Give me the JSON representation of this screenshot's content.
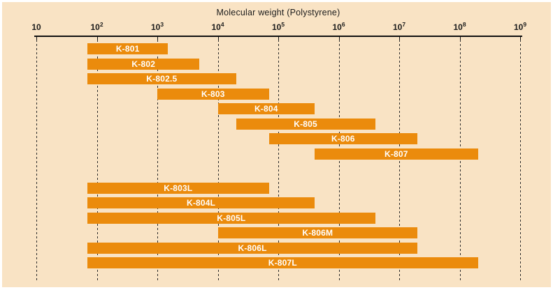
{
  "chart_data": {
    "type": "bar",
    "subtype": "horizontal-range-bars",
    "title": "Molecular weight (Polystyrene)",
    "x_axis": {
      "scale": "log10",
      "min": 10,
      "max": 1000000000,
      "ticks": [
        {
          "base": "10",
          "sup": "",
          "exp": 1
        },
        {
          "base": "10",
          "sup": "2",
          "exp": 2
        },
        {
          "base": "10",
          "sup": "3",
          "exp": 3
        },
        {
          "base": "10",
          "sup": "4",
          "exp": 4
        },
        {
          "base": "10",
          "sup": "5",
          "exp": 5
        },
        {
          "base": "10",
          "sup": "6",
          "exp": 6
        },
        {
          "base": "10",
          "sup": "7",
          "exp": 7
        },
        {
          "base": "10",
          "sup": "8",
          "exp": 8
        },
        {
          "base": "10",
          "sup": "9",
          "exp": 9
        }
      ]
    },
    "series": [
      {
        "label": "K-801",
        "mw_range": [
          70,
          1500
        ],
        "group": 1
      },
      {
        "label": "K-802",
        "mw_range": [
          70,
          5000
        ],
        "group": 1
      },
      {
        "label": "K-802.5",
        "mw_range": [
          70,
          20000
        ],
        "group": 1
      },
      {
        "label": "K-803",
        "mw_range": [
          1000,
          70000
        ],
        "group": 1
      },
      {
        "label": "K-804",
        "mw_range": [
          10000,
          400000
        ],
        "group": 1
      },
      {
        "label": "K-805",
        "mw_range": [
          20000,
          4000000
        ],
        "group": 1
      },
      {
        "label": "K-806",
        "mw_range": [
          70000,
          20000000
        ],
        "group": 1
      },
      {
        "label": "K-807",
        "mw_range": [
          400000,
          200000000
        ],
        "group": 1
      },
      {
        "label": "K-803L",
        "mw_range": [
          70,
          70000
        ],
        "group": 2
      },
      {
        "label": "K-804L",
        "mw_range": [
          70,
          400000
        ],
        "group": 2
      },
      {
        "label": "K-805L",
        "mw_range": [
          70,
          4000000
        ],
        "group": 2
      },
      {
        "label": "K-806M",
        "mw_range": [
          10000,
          20000000
        ],
        "group": 2
      },
      {
        "label": "K-806L",
        "mw_range": [
          70,
          20000000
        ],
        "group": 2
      },
      {
        "label": "K-807L",
        "mw_range": [
          70,
          200000000
        ],
        "group": 2
      }
    ],
    "colors": {
      "bar": "#EB8B0C",
      "background": "#F9E3C4",
      "grid": "#2B2B2B",
      "axis": "#111111",
      "bar_label": "#FFFFFF",
      "text": "#1C1C1C"
    },
    "layout_hints": {
      "grid": "vertical dashed line at every decade",
      "legend": "none",
      "groups": "two stacked groups of bars separated by a gap"
    }
  }
}
